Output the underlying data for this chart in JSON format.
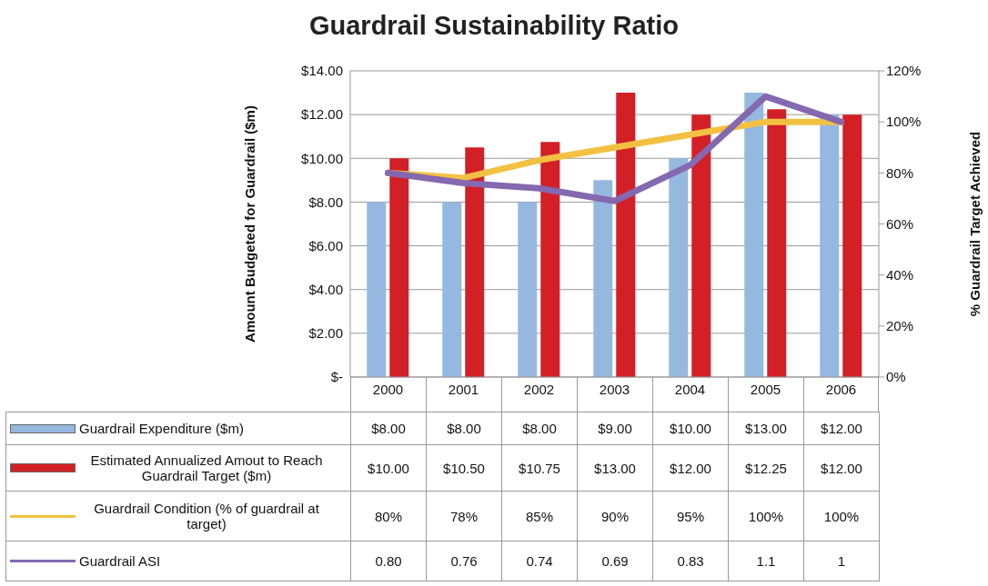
{
  "chart_data": {
    "type": "bar",
    "title": "Guardrail Sustainability Ratio",
    "ylabel": "Amount Budgeted for Guardrail ($m)",
    "y2label": "% Guardrail Target Achieved",
    "categories": [
      "2000",
      "2001",
      "2002",
      "2003",
      "2004",
      "2005",
      "2006"
    ],
    "series": [
      {
        "name": "Guardrail Expenditure ($m)",
        "color": "#95b8e0",
        "values": [
          8,
          8,
          8,
          9,
          10,
          13,
          12
        ],
        "value_labels": [
          "$8.00",
          "$8.00",
          "$8.00",
          "$9.00",
          "$10.00",
          "$13.00",
          "$12.00"
        ]
      },
      {
        "name": "Estimated Annualized Amout to Reach Guardrail Target ($m)",
        "color": "#d31f26",
        "values": [
          10,
          10.5,
          10.75,
          13,
          12,
          12.25,
          12
        ],
        "value_labels": [
          "$10.00",
          "$10.50",
          "$10.75",
          "$13.00",
          "$12.00",
          "$12.25",
          "$12.00"
        ]
      },
      {
        "name": "Guardrail Condition (% of guardrail at target)",
        "type": "line",
        "axis": "y2",
        "color": "#f3c142",
        "values": [
          0.8,
          0.78,
          0.85,
          0.9,
          0.95,
          1,
          1
        ],
        "value_labels": [
          "80%",
          "78%",
          "85%",
          "90%",
          "95%",
          "100%",
          "100%"
        ]
      },
      {
        "name": "Guardrail ASI",
        "type": "line",
        "axis": "y2",
        "color": "#8468b0",
        "values": [
          0.8,
          0.76,
          0.74,
          0.69,
          0.83,
          1.1,
          1
        ],
        "value_labels": [
          "0.80",
          "0.76",
          "0.74",
          "0.69",
          "0.83",
          "1.1",
          "1"
        ]
      }
    ],
    "ylim": [
      0,
      14
    ],
    "yticks": [
      {
        "value": 0,
        "label": "$-"
      },
      {
        "value": 2,
        "label": "$2.00"
      },
      {
        "value": 4,
        "label": "$4.00"
      },
      {
        "value": 6,
        "label": "$6.00"
      },
      {
        "value": 8,
        "label": "$8.00"
      },
      {
        "value": 10,
        "label": "$10.00"
      },
      {
        "value": 12,
        "label": "$12.00"
      },
      {
        "value": 14,
        "label": "$14.00"
      }
    ],
    "y2lim": [
      0,
      1.2
    ],
    "y2ticks": [
      {
        "value": 0,
        "label": "0%"
      },
      {
        "value": 0.2,
        "label": "20%"
      },
      {
        "value": 0.4,
        "label": "40%"
      },
      {
        "value": 0.6,
        "label": "60%"
      },
      {
        "value": 0.8,
        "label": "80%"
      },
      {
        "value": 1,
        "label": "100%"
      },
      {
        "value": 1.2,
        "label": "120%"
      }
    ],
    "grid": "y",
    "legend": "bottom",
    "marker": "none",
    "line_style": "solid"
  }
}
